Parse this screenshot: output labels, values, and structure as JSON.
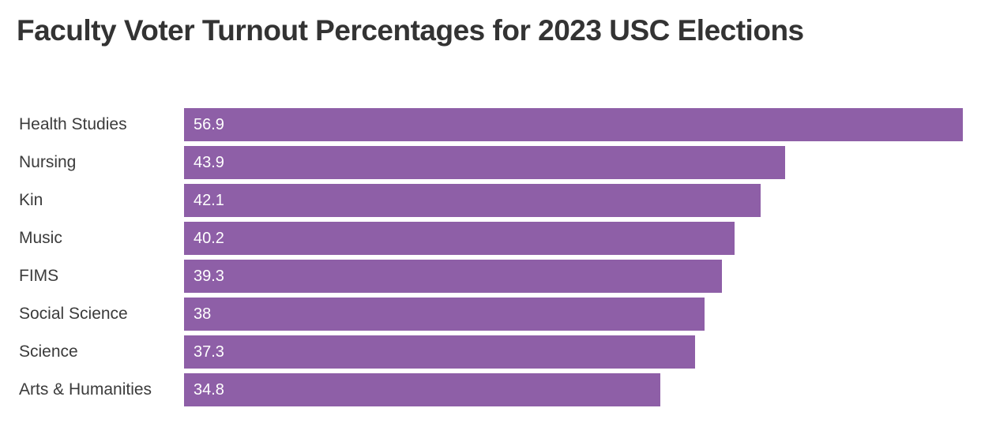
{
  "title": "Faculty Voter Turnout Percentages for 2023 USC Elections",
  "chart_data": {
    "type": "bar",
    "orientation": "horizontal",
    "title": "Faculty Voter Turnout Percentages for 2023 USC Elections",
    "categories": [
      "Health Studies",
      "Nursing",
      "Kin",
      "Music",
      "FIMS",
      "Social Science",
      "Science",
      "Arts & Humanities"
    ],
    "values": [
      56.9,
      43.9,
      42.1,
      40.2,
      39.3,
      38,
      37.3,
      34.8
    ],
    "value_labels": [
      "56.9",
      "43.9",
      "42.1",
      "40.2",
      "39.3",
      "38",
      "37.3",
      "34.8"
    ],
    "xlabel": "",
    "ylabel": "",
    "xlim": [
      0,
      58.2
    ],
    "grid": false,
    "legend": false,
    "value_labels_inside_bars": true,
    "sort_order": "descending",
    "colors": {
      "bar": "#8e5fa7",
      "value_label": "#ffffff",
      "category_label": "#3b3b3b",
      "title": "#333333",
      "background": "#ffffff"
    }
  }
}
